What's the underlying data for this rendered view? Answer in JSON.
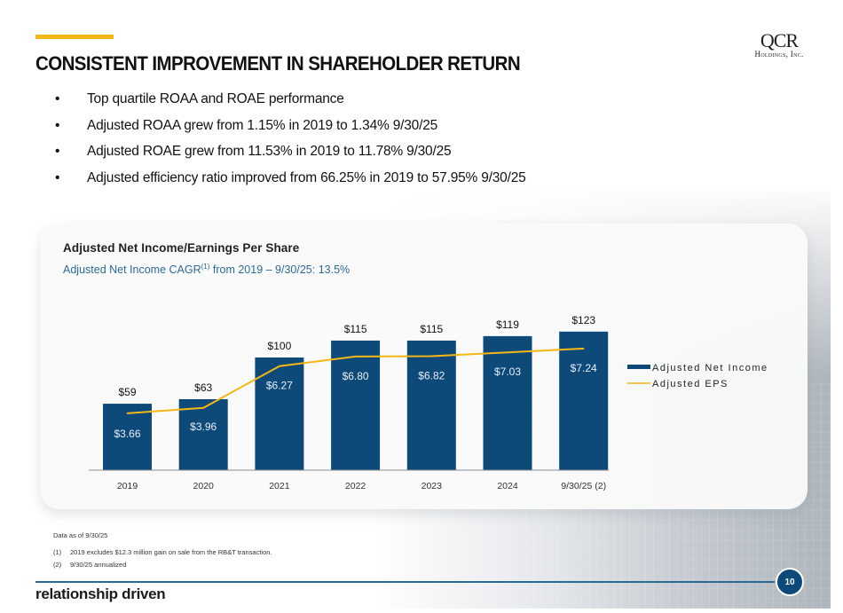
{
  "header": {
    "title": "CONSISTENT IMPROVEMENT IN SHAREHOLDER RETURN",
    "logo_line1": "QCR",
    "logo_line2": "Holdings, Inc."
  },
  "bullets": [
    "Top quartile ROAA and ROAE performance",
    "Adjusted ROAA grew from 1.15% in 2019 to 1.34% 9/30/25",
    "Adjusted ROAE grew from 11.53% in 2019 to 11.78% 9/30/25",
    "Adjusted efficiency ratio improved from 66.25% in 2019 to 57.95% 9/30/25"
  ],
  "bullet_glyph": "•",
  "colors": {
    "accent": "#f5b716",
    "bar": "#0d4a7a",
    "eps_line": "#f5b716",
    "subtitle": "#2d6a96"
  },
  "chart_data": {
    "type": "bar",
    "title": "Adjusted Net Income/Earnings Per Share",
    "subtitle_prefix": "Adjusted Net Income CAGR",
    "subtitle_sup": "(1)",
    "subtitle_suffix": " from 2019 – 9/30/25: 13.5%",
    "categories": [
      "2019",
      "2020",
      "2021",
      "2022",
      "2023",
      "2024",
      "9/30/25 (2)"
    ],
    "series": [
      {
        "name": "Adjusted Net Income",
        "type": "bar",
        "values": [
          59,
          63,
          100,
          115,
          115,
          119,
          123
        ],
        "labels": [
          "$59",
          "$63",
          "$100",
          "$115",
          "$115",
          "$119",
          "$123"
        ]
      },
      {
        "name": "Adjusted EPS",
        "type": "line",
        "values": [
          3.66,
          3.96,
          6.27,
          6.8,
          6.82,
          7.03,
          7.24
        ],
        "labels": [
          "$3.66",
          "$3.96",
          "$6.27",
          "$6.80",
          "$6.82",
          "$7.03",
          "$7.24"
        ]
      }
    ],
    "xlabel": "",
    "ylabel": "",
    "grid": false,
    "legend_position": "right"
  },
  "footnotes": {
    "date_note": "Data as of 9/30/25",
    "items": [
      {
        "num": "(1)",
        "text": "2019 excludes $12.3 million gain on sale from the RB&T transaction."
      },
      {
        "num": "(2)",
        "text": "9/30/25 annualized"
      }
    ]
  },
  "footer": {
    "tagline": "relationship driven",
    "page_number": "10"
  }
}
